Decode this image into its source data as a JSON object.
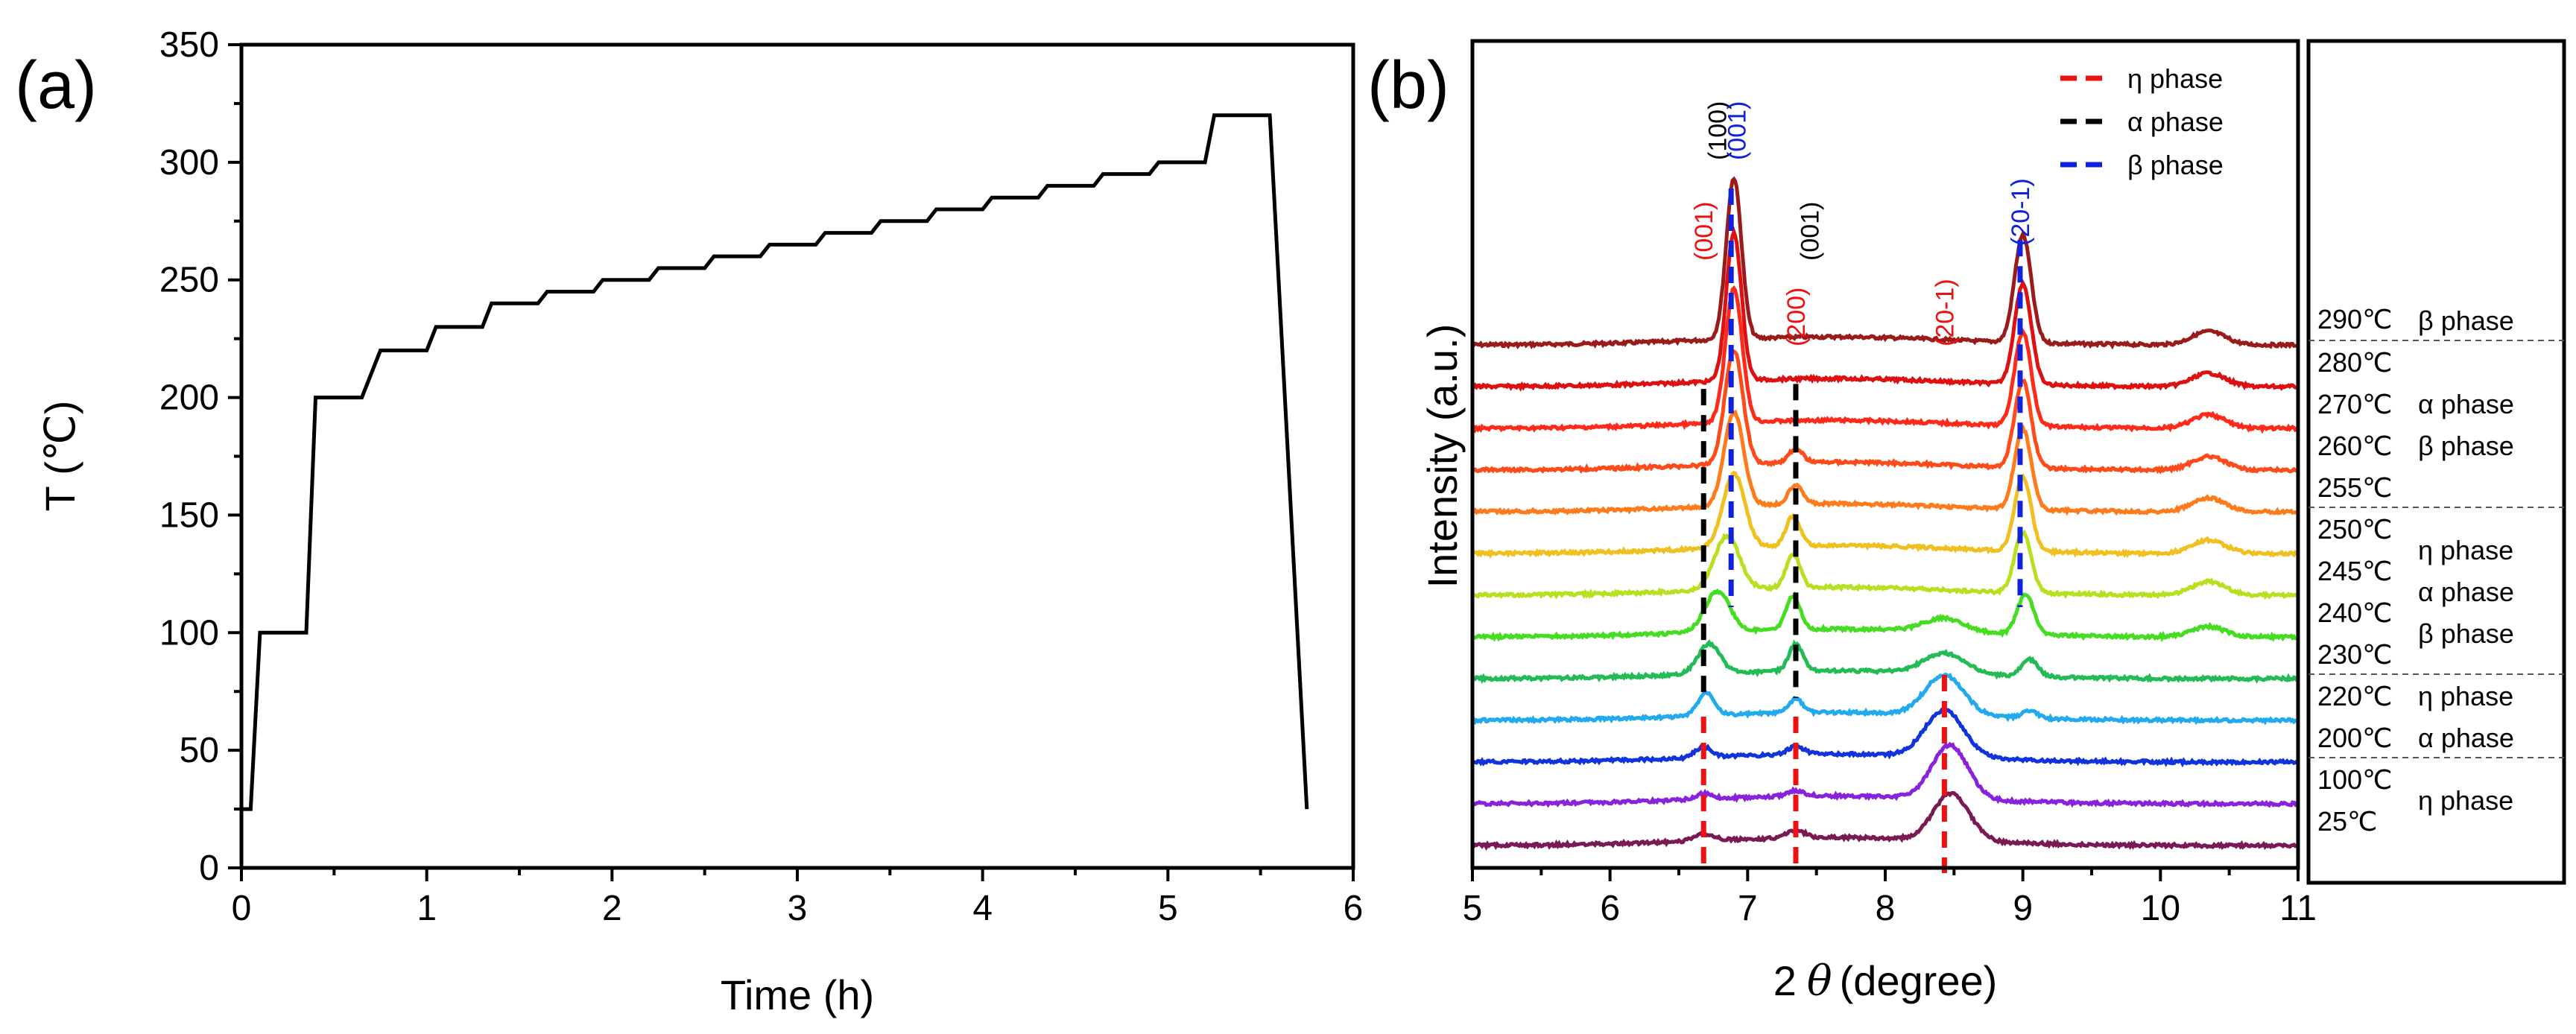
{
  "panel_a": {
    "label": "(a)",
    "chart_data": {
      "type": "line",
      "title": "",
      "xlabel": "Time (h)",
      "ylabel": "T (℃)",
      "xlim": [
        0,
        6
      ],
      "ylim": [
        0,
        350
      ],
      "xticks": [
        0,
        1,
        2,
        3,
        4,
        5,
        6
      ],
      "yticks": [
        0,
        50,
        100,
        150,
        200,
        250,
        300,
        350
      ],
      "series": [
        {
          "name": "temperature program",
          "color": "#000000",
          "x": [
            0.0,
            0.05,
            0.1,
            0.35,
            0.4,
            0.65,
            0.75,
            1.0,
            1.05,
            1.3,
            1.35,
            1.6,
            1.65,
            1.9,
            1.95,
            2.2,
            2.25,
            2.5,
            2.55,
            2.8,
            2.85,
            3.1,
            3.15,
            3.4,
            3.45,
            3.7,
            3.75,
            4.0,
            4.05,
            4.3,
            4.35,
            4.6,
            4.65,
            4.9,
            4.95,
            5.2,
            5.25,
            5.55,
            5.75
          ],
          "y": [
            25,
            25,
            100,
            100,
            200,
            200,
            220,
            220,
            230,
            230,
            240,
            240,
            245,
            245,
            250,
            250,
            255,
            255,
            260,
            260,
            265,
            265,
            270,
            270,
            275,
            275,
            280,
            280,
            285,
            285,
            290,
            290,
            295,
            295,
            300,
            300,
            320,
            320,
            25
          ]
        }
      ]
    }
  },
  "panel_b": {
    "label": "(b)",
    "chart_data": {
      "type": "line",
      "title": "",
      "xlabel": "(degree)",
      "xlabel_prefix": "2",
      "xlabel_symbol": "θ",
      "ylabel": "Intensity (a.u.)",
      "xlim": [
        5,
        11
      ],
      "xticks": [
        5,
        6,
        7,
        8,
        9,
        10,
        11
      ],
      "legend": [
        {
          "label": "η phase",
          "color": "#ee1111"
        },
        {
          "label": "α phase",
          "color": "#000000"
        },
        {
          "label": "β phase",
          "color": "#1122dd"
        }
      ],
      "reference_lines": [
        {
          "x": 6.68,
          "color": "#ee1111",
          "y_top_series": 9
        },
        {
          "x": 7.35,
          "color": "#ee1111",
          "y_top_series": 9
        },
        {
          "x": 8.43,
          "color": "#ee1111",
          "y_top_series": 8
        },
        {
          "x": 6.68,
          "color": "#000000",
          "y_top_series": 1
        },
        {
          "x": 7.35,
          "color": "#000000",
          "y_top_series": 1
        },
        {
          "x": 6.88,
          "color": "#1122dd",
          "y_top_series": -1
        },
        {
          "x": 8.98,
          "color": "#1122dd",
          "y_top_series": -1
        }
      ],
      "peak_labels": [
        {
          "text": "(001)",
          "x": 6.68,
          "color": "#ee1111"
        },
        {
          "text": "(100)",
          "x": 6.78,
          "color": "#000000"
        },
        {
          "text": "(001)",
          "x": 6.92,
          "color": "#1122dd"
        },
        {
          "text": "(200)",
          "x": 7.35,
          "color": "#ee1111"
        },
        {
          "text": "(001)",
          "x": 7.45,
          "color": "#000000"
        },
        {
          "text": "(20-1)",
          "x": 8.43,
          "color": "#ee1111"
        },
        {
          "text": "(20-1)",
          "x": 8.98,
          "color": "#1122dd"
        }
      ],
      "series": [
        {
          "name": "290℃",
          "color": "#9b1b1b",
          "peaks": [
            [
              6.9,
              0.055,
              0.24
            ],
            [
              9.0,
              0.06,
              0.16
            ],
            [
              10.35,
              0.12,
              0.02
            ]
          ]
        },
        {
          "name": "280℃",
          "color": "#dd1111",
          "peaks": [
            [
              6.9,
              0.055,
              0.22
            ],
            [
              9.0,
              0.06,
              0.15
            ],
            [
              10.35,
              0.12,
              0.02
            ]
          ]
        },
        {
          "name": "270℃",
          "color": "#ff2a1a",
          "peaks": [
            [
              6.9,
              0.06,
              0.2
            ],
            [
              9.0,
              0.06,
              0.14
            ],
            [
              10.35,
              0.12,
              0.02
            ]
          ]
        },
        {
          "name": "260℃",
          "color": "#ff4a1a",
          "peaks": [
            [
              6.9,
              0.065,
              0.17
            ],
            [
              7.35,
              0.05,
              0.02
            ],
            [
              9.0,
              0.06,
              0.13
            ],
            [
              10.35,
              0.12,
              0.02
            ]
          ]
        },
        {
          "name": "255℃",
          "color": "#ff7a1a",
          "peaks": [
            [
              6.9,
              0.07,
              0.14
            ],
            [
              7.35,
              0.05,
              0.03
            ],
            [
              9.0,
              0.06,
              0.12
            ],
            [
              10.35,
              0.12,
              0.02
            ]
          ]
        },
        {
          "name": "250℃",
          "color": "#f0c020",
          "peaks": [
            [
              6.9,
              0.08,
              0.11
            ],
            [
              7.33,
              0.05,
              0.045
            ],
            [
              9.0,
              0.06,
              0.11
            ],
            [
              10.35,
              0.12,
              0.02
            ]
          ]
        },
        {
          "name": "245℃",
          "color": "#b8e020",
          "peaks": [
            [
              6.85,
              0.09,
              0.08
            ],
            [
              7.33,
              0.05,
              0.05
            ],
            [
              9.0,
              0.06,
              0.09
            ],
            [
              10.35,
              0.12,
              0.02
            ]
          ]
        },
        {
          "name": "240℃",
          "color": "#44dd22",
          "peaks": [
            [
              6.78,
              0.09,
              0.06
            ],
            [
              7.33,
              0.05,
              0.05
            ],
            [
              8.43,
              0.15,
              0.02
            ],
            [
              9.02,
              0.06,
              0.06
            ],
            [
              10.35,
              0.12,
              0.015
            ]
          ]
        },
        {
          "name": "230℃",
          "color": "#22bb55",
          "peaks": [
            [
              6.72,
              0.08,
              0.045
            ],
            [
              7.35,
              0.05,
              0.04
            ],
            [
              8.43,
              0.15,
              0.03
            ],
            [
              9.05,
              0.06,
              0.025
            ]
          ]
        },
        {
          "name": "220℃",
          "color": "#22aaee",
          "peaks": [
            [
              6.7,
              0.06,
              0.035
            ],
            [
              7.35,
              0.05,
              0.02
            ],
            [
              8.43,
              0.14,
              0.06
            ],
            [
              9.05,
              0.06,
              0.01
            ]
          ]
        },
        {
          "name": "200℃",
          "color": "#1133dd",
          "peaks": [
            [
              6.68,
              0.06,
              0.015
            ],
            [
              7.35,
              0.06,
              0.012
            ],
            [
              8.43,
              0.14,
              0.07
            ]
          ]
        },
        {
          "name": "100℃",
          "color": "#8822dd",
          "peaks": [
            [
              6.68,
              0.06,
              0.008
            ],
            [
              7.35,
              0.06,
              0.008
            ],
            [
              8.47,
              0.13,
              0.08
            ]
          ]
        },
        {
          "name": "25℃",
          "color": "#7a1a55",
          "peaks": [
            [
              6.68,
              0.07,
              0.01
            ],
            [
              7.35,
              0.07,
              0.01
            ],
            [
              8.48,
              0.13,
              0.07
            ]
          ]
        }
      ]
    }
  },
  "side_panel": {
    "groups": [
      {
        "temps": [
          "290℃"
        ],
        "phases": [
          "β phase"
        ]
      },
      {
        "temps": [
          "280℃",
          "270℃",
          "260℃",
          "255℃"
        ],
        "phases": [
          "α phase",
          "β phase"
        ]
      },
      {
        "temps": [
          "250℃",
          "245℃",
          "240℃",
          "230℃"
        ],
        "phases": [
          "η phase",
          "α phase",
          "β phase"
        ]
      },
      {
        "temps": [
          "220℃",
          "200℃"
        ],
        "phases": [
          "η phase",
          "α phase"
        ]
      },
      {
        "temps": [
          "100℃",
          "25℃"
        ],
        "phases": [
          "η phase"
        ]
      }
    ]
  }
}
